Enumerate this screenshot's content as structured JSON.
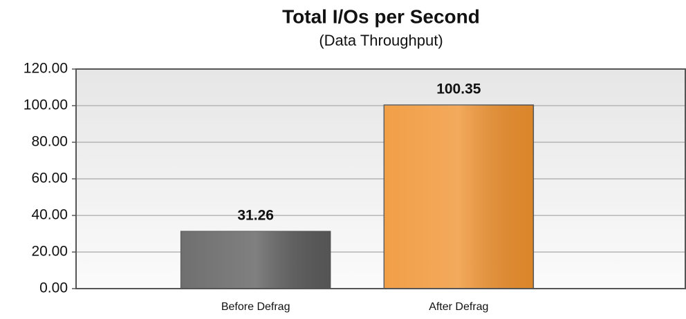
{
  "chart_data": {
    "type": "bar",
    "title": "Total I/Os per Second",
    "subtitle": "(Data Throughput)",
    "categories": [
      "Before Defrag",
      "After Defrag"
    ],
    "values": [
      31.26,
      100.35
    ],
    "colors": [
      "#5c5c5c",
      "#f0922e"
    ],
    "ylim": [
      0,
      120
    ],
    "yticks": [
      {
        "value": 0,
        "label": "0.00"
      },
      {
        "value": 20,
        "label": "20.00"
      },
      {
        "value": 40,
        "label": "40.00"
      },
      {
        "value": 60,
        "label": "60.00"
      },
      {
        "value": 80,
        "label": "80.00"
      },
      {
        "value": 100,
        "label": "100.00"
      },
      {
        "value": 120,
        "label": "120.00"
      }
    ],
    "grid": true
  }
}
